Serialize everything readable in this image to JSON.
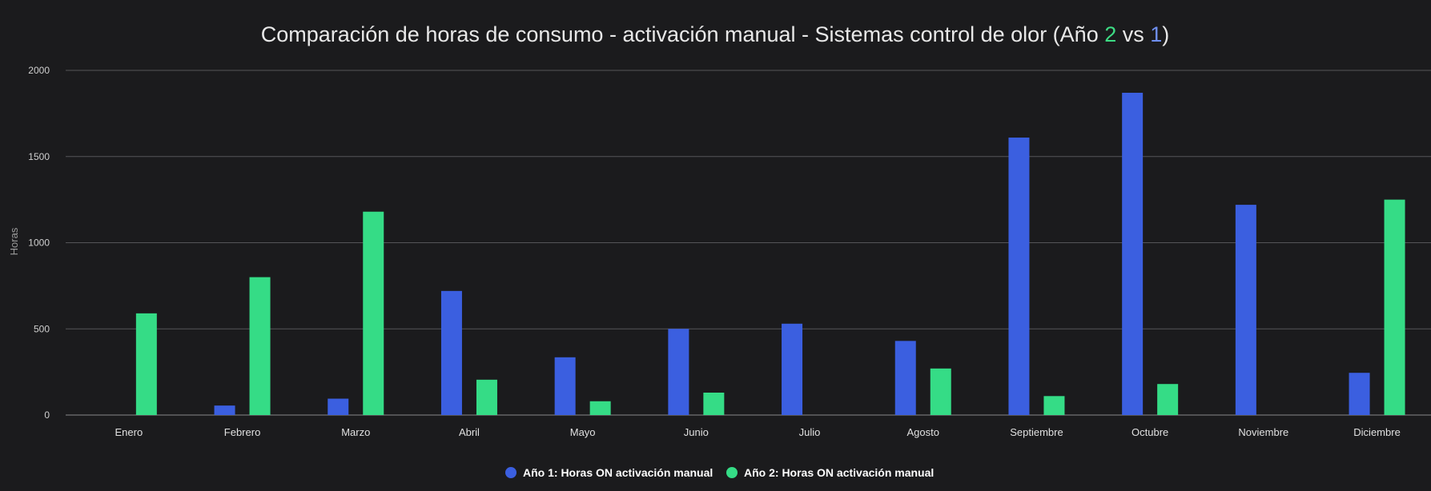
{
  "chart_data": {
    "type": "bar",
    "title_parts": [
      {
        "text": "Comparación de horas de consumo - activación manual - Sistemas control de olor (Año ",
        "color": "#e8e8e8"
      },
      {
        "text": "2",
        "color": "#3ddc84"
      },
      {
        "text": " vs ",
        "color": "#e8e8e8"
      },
      {
        "text": "1",
        "color": "#6f8ff0"
      },
      {
        "text": ")",
        "color": "#e8e8e8"
      }
    ],
    "xlabel": "",
    "ylabel": "Horas",
    "ylim": [
      0,
      2000
    ],
    "yticks": [
      0,
      500,
      1000,
      1500,
      2000
    ],
    "grid": true,
    "legend_position": "bottom",
    "categories": [
      "Enero",
      "Febrero",
      "Marzo",
      "Abril",
      "Mayo",
      "Junio",
      "Julio",
      "Agosto",
      "Septiembre",
      "Octubre",
      "Noviembre",
      "Diciembre"
    ],
    "series": [
      {
        "name": "Año 1: Horas ON activación manual",
        "color": "#3b5fe0",
        "values": [
          0,
          55,
          95,
          720,
          335,
          500,
          530,
          430,
          1610,
          1870,
          1220,
          245
        ]
      },
      {
        "name": "Año 2: Horas ON activación manual",
        "color": "#35dc86",
        "values": [
          590,
          800,
          1180,
          205,
          80,
          130,
          0,
          270,
          110,
          180,
          0,
          1250
        ]
      }
    ]
  }
}
